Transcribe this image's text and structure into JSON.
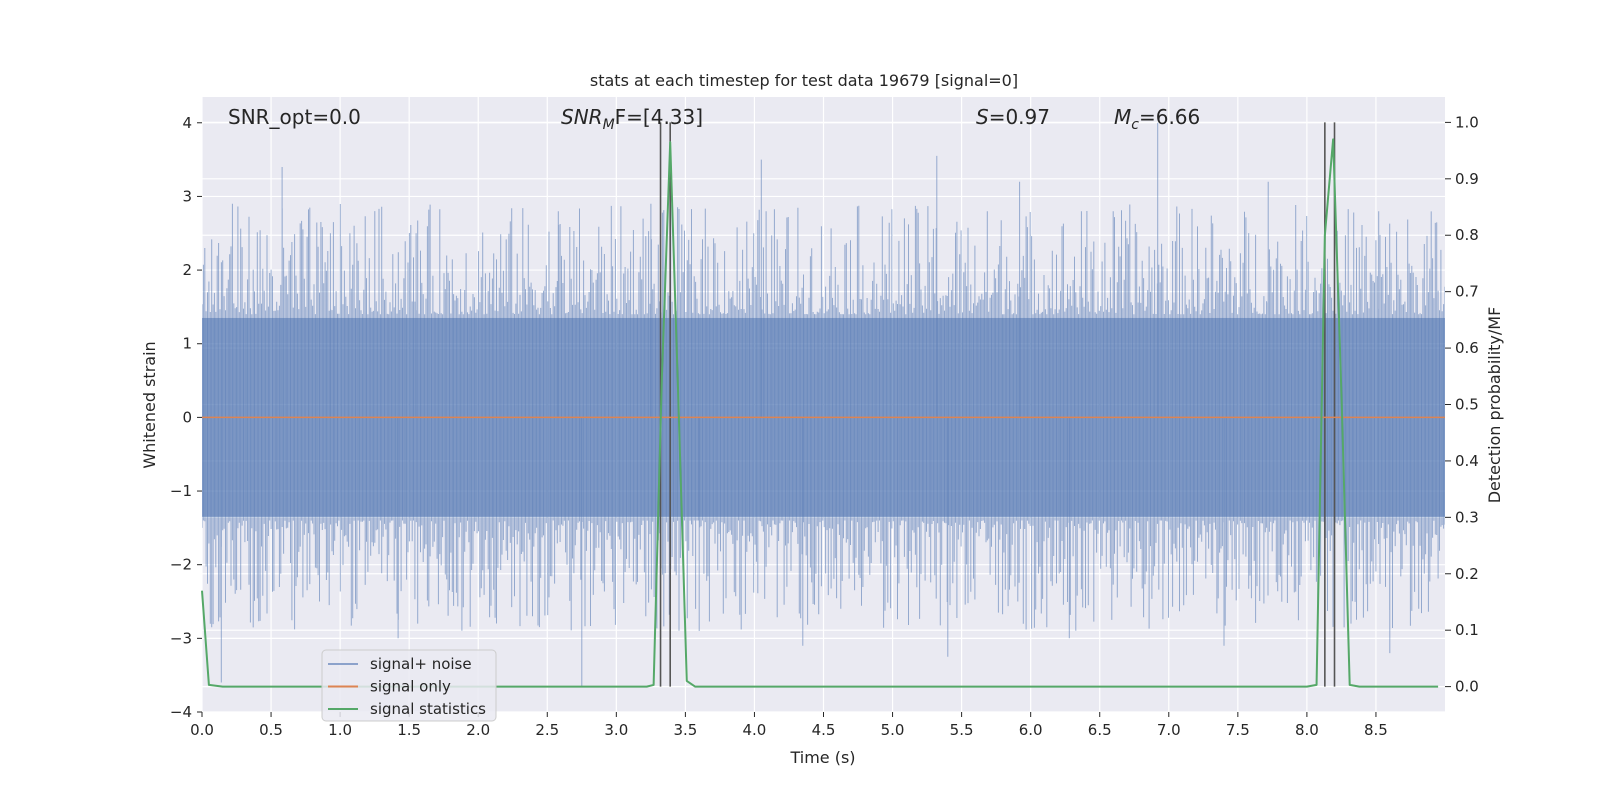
{
  "chart_data": {
    "type": "line",
    "title": "stats at each timestep for test data 19679 [signal=0]",
    "xlabel": "Time (s)",
    "ylabel": "Whitened strain",
    "y2label": "Detection probability/MF",
    "xlim": [
      0.0,
      9.0
    ],
    "ylim": [
      -4.0,
      4.35
    ],
    "y2lim": [
      -0.045,
      1.045
    ],
    "x_ticks": [
      0.0,
      0.5,
      1.0,
      1.5,
      2.0,
      2.5,
      3.0,
      3.5,
      4.0,
      4.5,
      5.0,
      5.5,
      6.0,
      6.5,
      7.0,
      7.5,
      8.0,
      8.5
    ],
    "x_tick_labels": [
      "0.0",
      "0.5",
      "1.0",
      "1.5",
      "2.0",
      "2.5",
      "3.0",
      "3.5",
      "4.0",
      "4.5",
      "5.0",
      "5.5",
      "6.0",
      "6.5",
      "7.0",
      "7.5",
      "8.0",
      "8.5"
    ],
    "y_ticks": [
      -4,
      -3,
      -2,
      -1,
      0,
      1,
      2,
      3,
      4
    ],
    "y_tick_labels": [
      "−4",
      "−3",
      "−2",
      "−1",
      "0",
      "1",
      "2",
      "3",
      "4"
    ],
    "y2_ticks": [
      0.0,
      0.1,
      0.2,
      0.3,
      0.4,
      0.5,
      0.6,
      0.7,
      0.8,
      0.9,
      1.0
    ],
    "y2_tick_labels": [
      "0.0",
      "0.1",
      "0.2",
      "0.3",
      "0.4",
      "0.5",
      "0.6",
      "0.7",
      "0.8",
      "0.9",
      "1.0"
    ],
    "grid": true,
    "legend_position": "lower-left",
    "annotations": [
      {
        "id": "snr-opt",
        "text": "SNR_opt=0.0"
      },
      {
        "id": "snr-mf",
        "prefix": "SNR",
        "sub": "M",
        "suffix": "F=[4.33]"
      },
      {
        "id": "s-value",
        "prefix": "S",
        "suffix": "=0.97"
      },
      {
        "id": "mc-value",
        "prefix": "M",
        "sub": "c",
        "suffix": "=6.66"
      }
    ],
    "series": [
      {
        "name": "signal+ noise",
        "color": "#4c72b0",
        "axis": "left",
        "kind": "noise",
        "x_range": [
          0.0,
          9.0
        ],
        "typical_band": [
          -1.35,
          1.35
        ],
        "notable_peaks": [
          {
            "x": 0.02,
            "y": 2.3
          },
          {
            "x": 0.22,
            "y": 2.9
          },
          {
            "x": 0.58,
            "y": 3.4
          },
          {
            "x": 0.93,
            "y": 2.5
          },
          {
            "x": 1.55,
            "y": 2.5
          },
          {
            "x": 2.58,
            "y": 2.8
          },
          {
            "x": 3.25,
            "y": 2.9
          },
          {
            "x": 4.05,
            "y": 3.5
          },
          {
            "x": 5.32,
            "y": 3.55
          },
          {
            "x": 5.92,
            "y": 3.2
          },
          {
            "x": 6.92,
            "y": 4.0
          },
          {
            "x": 7.72,
            "y": 3.2
          },
          {
            "x": 8.52,
            "y": 2.8
          },
          {
            "x": 8.9,
            "y": 2.25
          }
        ],
        "notable_troughs": [
          {
            "x": 0.14,
            "y": -3.6
          },
          {
            "x": 1.42,
            "y": -3.0
          },
          {
            "x": 2.75,
            "y": -3.65
          },
          {
            "x": 3.6,
            "y": -2.9
          },
          {
            "x": 4.35,
            "y": -3.1
          },
          {
            "x": 5.4,
            "y": -3.25
          },
          {
            "x": 6.28,
            "y": -3.0
          },
          {
            "x": 7.4,
            "y": -3.1
          },
          {
            "x": 8.6,
            "y": -3.2
          }
        ]
      },
      {
        "name": "signal only",
        "color": "#dd8452",
        "axis": "left",
        "x": [
          0.0,
          9.0
        ],
        "y": [
          0.0,
          0.0
        ]
      },
      {
        "name": "signal statistics",
        "color": "#55a868",
        "axis": "right",
        "x": [
          0.0,
          0.05,
          0.15,
          3.0,
          3.22,
          3.27,
          3.33,
          3.39,
          3.45,
          3.51,
          3.57,
          3.65,
          6.3,
          6.4,
          8.0,
          8.07,
          8.13,
          8.19,
          8.25,
          8.31,
          8.38,
          8.95
        ],
        "y": [
          0.17,
          0.003,
          0.0,
          0.0,
          0.0,
          0.003,
          0.55,
          0.965,
          0.5,
          0.01,
          0.0,
          0.0,
          0.0,
          0.0,
          0.0,
          0.003,
          0.8,
          0.97,
          0.52,
          0.003,
          0.0,
          0.0
        ]
      }
    ],
    "vertical_lines": [
      {
        "x": 3.32,
        "color": "#555555"
      },
      {
        "x": 3.39,
        "color": "#555555"
      },
      {
        "x": 8.13,
        "color": "#555555"
      },
      {
        "x": 8.2,
        "color": "#555555"
      }
    ]
  }
}
